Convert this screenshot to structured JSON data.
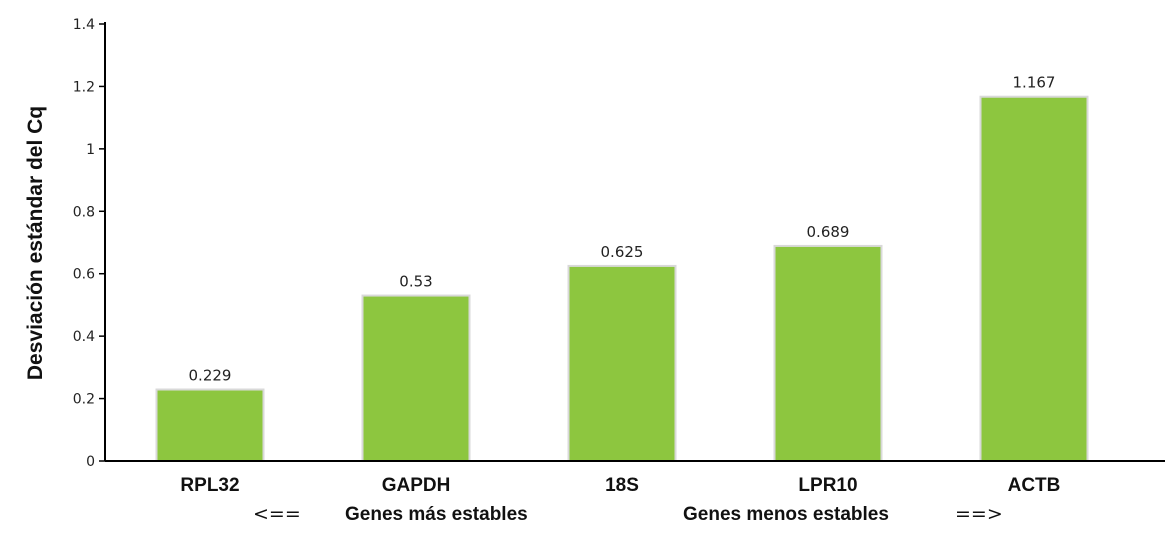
{
  "chart_data": {
    "type": "bar",
    "categories": [
      "RPL32",
      "GAPDH",
      "18S",
      "LPR10",
      "ACTB"
    ],
    "values": [
      0.229,
      0.53,
      0.625,
      0.689,
      1.167
    ],
    "data_labels": [
      "0.229",
      "0.53",
      "0.625",
      "0.689",
      "1.167"
    ],
    "title": "",
    "xlabel": "",
    "ylabel": "Desviación estándar del Cq",
    "ylim": [
      0,
      1.4
    ],
    "yticks": [
      "0",
      "0.2",
      "0.4",
      "0.6",
      "0.8",
      "1",
      "1.2",
      "1.4"
    ],
    "grid": false,
    "bar_color": "#8dc63f",
    "bar_edge_color": "#d9d9d9",
    "annotations": {
      "left_arrow": "<==",
      "left_text": "Genes más estables",
      "right_text": "Genes menos estables",
      "right_arrow": "==>"
    }
  }
}
